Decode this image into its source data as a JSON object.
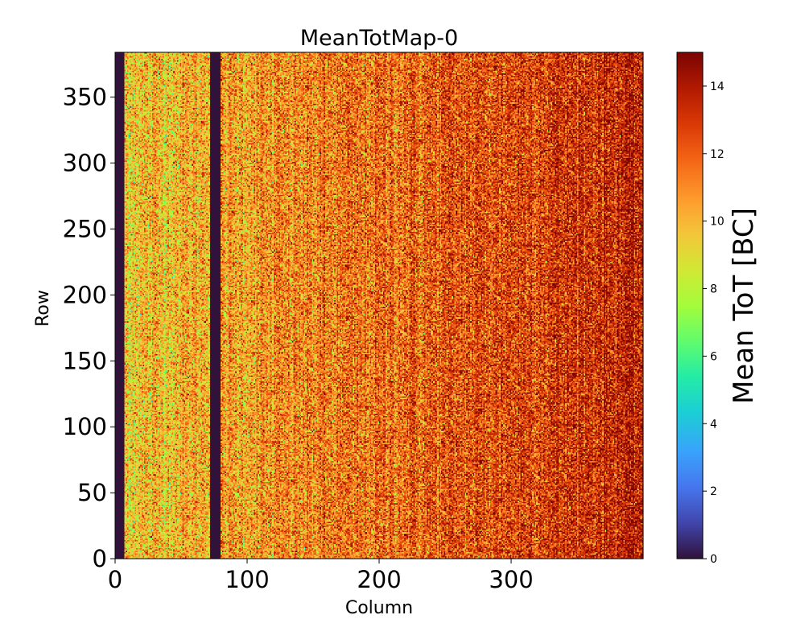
{
  "chart_data": {
    "type": "heatmap",
    "title": "MeanTotMap-0",
    "xlabel": "Column",
    "ylabel": "Row",
    "xlim": [
      0,
      400
    ],
    "ylim": [
      0,
      384
    ],
    "x_ticks": [
      0,
      100,
      200,
      300
    ],
    "x_tick_labels": [
      "0",
      "100",
      "200",
      "300"
    ],
    "y_ticks": [
      0,
      50,
      100,
      150,
      200,
      250,
      300,
      350
    ],
    "y_tick_labels": [
      "0",
      "50",
      "100",
      "150",
      "200",
      "250",
      "300",
      "350"
    ],
    "colorbar": {
      "label": "Mean ToT [BC]",
      "range": [
        0,
        15
      ],
      "ticks": [
        0,
        2,
        4,
        6,
        8,
        10,
        12,
        14
      ],
      "tick_labels": [
        "0",
        "2",
        "4",
        "6",
        "8",
        "10",
        "12",
        "14"
      ],
      "colormap": "turbo"
    },
    "dead_column_bands": [
      {
        "columns": [
          0,
          7
        ],
        "value": 0
      },
      {
        "columns": [
          72,
          80
        ],
        "value": 0
      }
    ],
    "trend": {
      "description": "mean ToT increases from left (~9-10 BC) to right (~13-14 BC)",
      "value_at_col_0": 9.6,
      "value_at_col_400": 13.6,
      "noise_sd": 1.6
    },
    "grid": false
  },
  "colors": {
    "background": "#ffffff",
    "axis": "#000000"
  }
}
